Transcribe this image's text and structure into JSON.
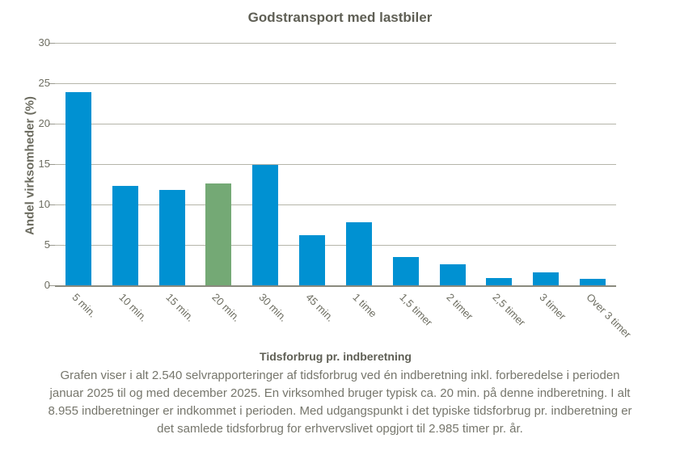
{
  "chart_data": {
    "type": "bar",
    "title": "Godstransport med lastbiler",
    "xlabel": "Tidsforbrug pr. indberetning",
    "ylabel": "Andel virksomheder (%)",
    "categories": [
      "5 min.",
      "10 min.",
      "15 min.",
      "20 min.",
      "30 min.",
      "45 min.",
      "1 time",
      "1,5 timer",
      "2 timer",
      "2,5 timer",
      "3 timer",
      "Over 3 timer"
    ],
    "values": [
      23.9,
      12.3,
      11.8,
      12.6,
      14.9,
      6.2,
      7.8,
      3.5,
      2.6,
      0.9,
      1.6,
      0.8
    ],
    "highlight_index": 3,
    "bar_color": "#0091d2",
    "highlight_color": "#74a975",
    "ylim": [
      0,
      30
    ],
    "yticks": [
      0,
      5,
      10,
      15,
      20,
      25,
      30
    ],
    "grid": true,
    "legend_position": "none"
  },
  "caption": {
    "lines": [
      "Grafen viser i alt 2.540 selvrapporteringer af tidsforbrug ved én indberetning inkl. forberedelse i perioden",
      "januar 2025 til og med december 2025. En virksomhed bruger typisk ca. 20 min. på denne indberetning. I alt",
      "8.955 indberetninger er indkommet i perioden. Med udgangspunkt i det typiske tidsforbrug pr. indberetning er",
      "det samlede tidsforbrug for erhvervslivet opgjort til 2.985 timer pr. år."
    ]
  }
}
